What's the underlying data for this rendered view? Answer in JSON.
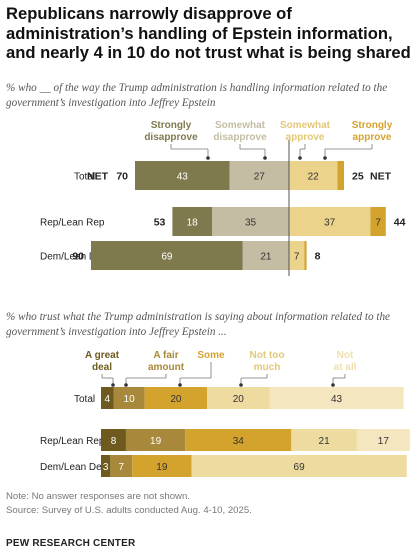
{
  "title": "Republicans narrowly disapprove of administration’s handling of Epstein information, and nearly 4 in 10 do not trust what is being shared",
  "chart_data": [
    {
      "type": "bar",
      "stacked": true,
      "diverging": true,
      "subtitle": "% who __ of the way the Trump administration is handling information related to the government’s investigation into Jeffrey Epstein",
      "categories": [
        "Total",
        "Rep/Lean Rep",
        "Dem/Lean Dem"
      ],
      "series": [
        {
          "name": "Strongly disapprove",
          "values": [
            43,
            18,
            69
          ],
          "color": "#7f7a4e"
        },
        {
          "name": "Somewhat disapprove",
          "values": [
            27,
            35,
            21
          ],
          "color": "#c4bda3"
        },
        {
          "name": "Somewhat approve",
          "values": [
            22,
            37,
            7
          ],
          "color": "#ecd38c"
        },
        {
          "name": "Strongly approve",
          "values": [
            3,
            7,
            1
          ],
          "color": "#d4a32e"
        }
      ],
      "legend": [
        {
          "line1": "Strongly",
          "line2": "disapprove",
          "color": "#7f7a4e"
        },
        {
          "line1": "Somewhat",
          "line2": "disapprove",
          "color": "#c4bda3"
        },
        {
          "line1": "Somewhat",
          "line2": "approve",
          "color": "#e2c877"
        },
        {
          "line1": "Strongly",
          "line2": "approve",
          "color": "#d4a32e"
        }
      ],
      "net_disapprove": [
        "70",
        "53",
        "90"
      ],
      "net_approve": [
        "25",
        "44",
        "8"
      ],
      "net_label": "NET",
      "value_labels": [
        [
          "43",
          "27",
          "22",
          ""
        ],
        [
          "18",
          "35",
          "37",
          "7"
        ],
        [
          "69",
          "21",
          "7",
          ""
        ]
      ]
    },
    {
      "type": "bar",
      "stacked": true,
      "subtitle": "% who trust what the Trump administration is saying about information related to the government’s investigation into Jeffrey Epstein ...",
      "categories": [
        "Total",
        "Rep/Lean Rep",
        "Dem/Lean Dem"
      ],
      "series": [
        {
          "name": "A great deal",
          "values": [
            4,
            8,
            3
          ],
          "color": "#6e5a1f"
        },
        {
          "name": "A fair amount",
          "values": [
            10,
            19,
            7
          ],
          "color": "#a8883a"
        },
        {
          "name": "Some",
          "values": [
            20,
            34,
            19
          ],
          "color": "#d4a32e"
        },
        {
          "name": "Not too much",
          "values": [
            20,
            21,
            69
          ],
          "color": "#eedb9f"
        },
        {
          "name": "Not at all",
          "values": [
            43,
            17,
            0
          ],
          "color": "#f4e6bf"
        }
      ],
      "legend": [
        {
          "line1": "A great",
          "line2": "deal",
          "color": "#6e5a1f"
        },
        {
          "line1": "A fair",
          "line2": "amount",
          "color": "#a8883a"
        },
        {
          "line1": "Some",
          "line2": "",
          "color": "#d4a32e"
        },
        {
          "line1": "Not too",
          "line2": "much",
          "color": "#e2c877"
        },
        {
          "line1": "Not",
          "line2": "at all",
          "color": "#efdfae"
        }
      ],
      "value_labels": [
        [
          "4",
          "10",
          "20",
          "20",
          "43"
        ],
        [
          "8",
          "19",
          "34",
          "21",
          "17"
        ],
        [
          "3",
          "7",
          "19",
          "69",
          ""
        ]
      ]
    }
  ],
  "note": "Note: No answer responses are not shown.",
  "survey": "Source: Survey of U.S. adults conducted Aug. 4-10, 2025.",
  "source": "PEW RESEARCH CENTER"
}
